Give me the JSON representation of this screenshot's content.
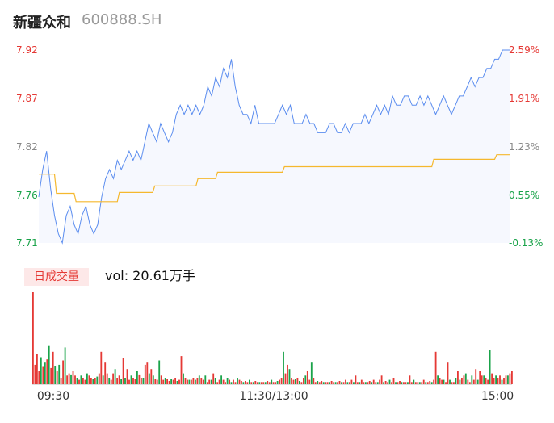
{
  "header": {
    "name": "新疆众和",
    "code": "600888.SH"
  },
  "volume_panel": {
    "tag": "日成交量",
    "label": "vol: 20.61万手"
  },
  "colors": {
    "up": "#e53935",
    "down": "#1aa34a",
    "neutral": "#888888",
    "price_line": "#5b8def",
    "avg_line": "#f5b82e",
    "area_fill": "#f6f8fe"
  },
  "chart_data": [
    {
      "type": "line",
      "title": "",
      "x_ticks": [
        "09:30",
        "11:30/13:00",
        "15:00"
      ],
      "y_left_ticks": [
        "7.92",
        "7.87",
        "7.82",
        "7.76",
        "7.71"
      ],
      "y_right_ticks": [
        "2.59%",
        "1.91%",
        "1.23%",
        "0.55%",
        "-0.13%"
      ],
      "ylim": [
        7.71,
        7.92
      ],
      "points_count": 241,
      "series": [
        {
          "role": "price",
          "keypoints": [
            [
              0,
              7.76
            ],
            [
              2,
              7.79
            ],
            [
              4,
              7.81
            ],
            [
              6,
              7.77
            ],
            [
              8,
              7.74
            ],
            [
              10,
              7.72
            ],
            [
              12,
              7.71
            ],
            [
              14,
              7.74
            ],
            [
              16,
              7.75
            ],
            [
              18,
              7.73
            ],
            [
              20,
              7.72
            ],
            [
              22,
              7.74
            ],
            [
              24,
              7.75
            ],
            [
              26,
              7.73
            ],
            [
              28,
              7.72
            ],
            [
              30,
              7.73
            ],
            [
              32,
              7.76
            ],
            [
              34,
              7.78
            ],
            [
              36,
              7.79
            ],
            [
              38,
              7.78
            ],
            [
              40,
              7.8
            ],
            [
              42,
              7.79
            ],
            [
              44,
              7.8
            ],
            [
              46,
              7.81
            ],
            [
              48,
              7.8
            ],
            [
              50,
              7.81
            ],
            [
              52,
              7.8
            ],
            [
              54,
              7.82
            ],
            [
              56,
              7.84
            ],
            [
              58,
              7.83
            ],
            [
              60,
              7.82
            ],
            [
              62,
              7.84
            ],
            [
              64,
              7.83
            ],
            [
              66,
              7.82
            ],
            [
              68,
              7.83
            ],
            [
              70,
              7.85
            ],
            [
              72,
              7.86
            ],
            [
              74,
              7.85
            ],
            [
              76,
              7.86
            ],
            [
              78,
              7.85
            ],
            [
              80,
              7.86
            ],
            [
              82,
              7.85
            ],
            [
              84,
              7.86
            ],
            [
              86,
              7.88
            ],
            [
              88,
              7.87
            ],
            [
              90,
              7.89
            ],
            [
              92,
              7.88
            ],
            [
              94,
              7.9
            ],
            [
              96,
              7.89
            ],
            [
              98,
              7.91
            ],
            [
              100,
              7.88
            ],
            [
              102,
              7.86
            ],
            [
              104,
              7.85
            ],
            [
              106,
              7.85
            ],
            [
              108,
              7.84
            ],
            [
              110,
              7.86
            ],
            [
              112,
              7.84
            ],
            [
              114,
              7.84
            ],
            [
              116,
              7.84
            ],
            [
              118,
              7.84
            ],
            [
              120,
              7.84
            ],
            [
              122,
              7.85
            ],
            [
              124,
              7.86
            ],
            [
              126,
              7.85
            ],
            [
              128,
              7.86
            ],
            [
              130,
              7.84
            ],
            [
              132,
              7.84
            ],
            [
              134,
              7.84
            ],
            [
              136,
              7.85
            ],
            [
              138,
              7.84
            ],
            [
              140,
              7.84
            ],
            [
              142,
              7.83
            ],
            [
              144,
              7.83
            ],
            [
              146,
              7.83
            ],
            [
              148,
              7.84
            ],
            [
              150,
              7.84
            ],
            [
              152,
              7.83
            ],
            [
              154,
              7.83
            ],
            [
              156,
              7.84
            ],
            [
              158,
              7.83
            ],
            [
              160,
              7.84
            ],
            [
              162,
              7.84
            ],
            [
              164,
              7.84
            ],
            [
              166,
              7.85
            ],
            [
              168,
              7.84
            ],
            [
              170,
              7.85
            ],
            [
              172,
              7.86
            ],
            [
              174,
              7.85
            ],
            [
              176,
              7.86
            ],
            [
              178,
              7.85
            ],
            [
              180,
              7.87
            ],
            [
              182,
              7.86
            ],
            [
              184,
              7.86
            ],
            [
              186,
              7.87
            ],
            [
              188,
              7.87
            ],
            [
              190,
              7.86
            ],
            [
              192,
              7.86
            ],
            [
              194,
              7.87
            ],
            [
              196,
              7.86
            ],
            [
              198,
              7.87
            ],
            [
              200,
              7.86
            ],
            [
              202,
              7.85
            ],
            [
              204,
              7.86
            ],
            [
              206,
              7.87
            ],
            [
              208,
              7.86
            ],
            [
              210,
              7.85
            ],
            [
              212,
              7.86
            ],
            [
              214,
              7.87
            ],
            [
              216,
              7.87
            ],
            [
              218,
              7.88
            ],
            [
              220,
              7.89
            ],
            [
              222,
              7.88
            ],
            [
              224,
              7.89
            ],
            [
              226,
              7.89
            ],
            [
              228,
              7.9
            ],
            [
              230,
              7.9
            ],
            [
              232,
              7.91
            ],
            [
              234,
              7.91
            ],
            [
              236,
              7.92
            ],
            [
              238,
              7.92
            ],
            [
              240,
              7.92
            ]
          ]
        },
        {
          "role": "average",
          "keypoints": [
            [
              0,
              7.785
            ],
            [
              8,
              7.785
            ],
            [
              9,
              7.764
            ],
            [
              18,
              7.764
            ],
            [
              19,
              7.755
            ],
            [
              40,
              7.755
            ],
            [
              41,
              7.765
            ],
            [
              58,
              7.765
            ],
            [
              59,
              7.772
            ],
            [
              80,
              7.772
            ],
            [
              81,
              7.78
            ],
            [
              90,
              7.78
            ],
            [
              91,
              7.787
            ],
            [
              124,
              7.787
            ],
            [
              125,
              7.793
            ],
            [
              200,
              7.793
            ],
            [
              201,
              7.801
            ],
            [
              232,
              7.801
            ],
            [
              233,
              7.806
            ],
            [
              240,
              7.806
            ]
          ]
        }
      ]
    },
    {
      "type": "bar",
      "title": "",
      "unit": "万手",
      "values": [
        85,
        18,
        28,
        12,
        25,
        16,
        20,
        23,
        36,
        15,
        30,
        17,
        12,
        18,
        6,
        22,
        34,
        8,
        10,
        9,
        12,
        8,
        6,
        4,
        8,
        6,
        4,
        10,
        8,
        6,
        5,
        6,
        7,
        10,
        30,
        8,
        20,
        10,
        6,
        4,
        10,
        14,
        6,
        8,
        5,
        24,
        6,
        14,
        4,
        8,
        6,
        5,
        12,
        9,
        6,
        6,
        18,
        20,
        10,
        14,
        8,
        5,
        4,
        22,
        8,
        4,
        6,
        5,
        3,
        5,
        4,
        6,
        3,
        4,
        26,
        10,
        6,
        4,
        4,
        4,
        6,
        4,
        6,
        8,
        6,
        4,
        8,
        2,
        4,
        4,
        10,
        6,
        2,
        4,
        8,
        4,
        2,
        6,
        4,
        2,
        4,
        2,
        6,
        4,
        3,
        2,
        3,
        2,
        4,
        2,
        2,
        3,
        2,
        2,
        2,
        2,
        2,
        3,
        2,
        4,
        2,
        2,
        3,
        4,
        6,
        30,
        10,
        18,
        14,
        6,
        4,
        5,
        6,
        3,
        2,
        6,
        8,
        12,
        4,
        20,
        6,
        2,
        3,
        2,
        3,
        2,
        2,
        2,
        2,
        3,
        2,
        2,
        2,
        3,
        2,
        2,
        4,
        2,
        2,
        4,
        2,
        8,
        2,
        2,
        4,
        2,
        2,
        2,
        3,
        2,
        4,
        2,
        2,
        4,
        8,
        2,
        3,
        2,
        4,
        2,
        6,
        2,
        2,
        3,
        2,
        2,
        2,
        2,
        8,
        2,
        4,
        2,
        2,
        2,
        2,
        4,
        2,
        2,
        3,
        2,
        4,
        30,
        8,
        6,
        4,
        4,
        2,
        20,
        4,
        2,
        2,
        6,
        12,
        4,
        6,
        8,
        10,
        4,
        2,
        8,
        4,
        14,
        4,
        12,
        8,
        8,
        6,
        4,
        32,
        10,
        6,
        8,
        6,
        8,
        4,
        6,
        8,
        8,
        10,
        12
      ],
      "colors": [
        "up",
        "up",
        "up",
        "up",
        "down",
        "up",
        "down",
        "up",
        "down",
        "up",
        "up",
        "down",
        "up",
        "down",
        "up",
        "up",
        "down",
        "up",
        "up",
        "down",
        "up",
        "up",
        "down",
        "up",
        "down",
        "up",
        "up",
        "down",
        "up",
        "up",
        "down",
        "up",
        "down",
        "up",
        "up",
        "down",
        "up",
        "up",
        "down",
        "up",
        "up",
        "down",
        "up",
        "up",
        "down",
        "up",
        "down",
        "up",
        "up",
        "down",
        "up",
        "up",
        "down",
        "up",
        "up",
        "down",
        "up",
        "up",
        "down",
        "up",
        "down",
        "up",
        "up",
        "down",
        "up",
        "up",
        "down",
        "up",
        "up",
        "down",
        "up",
        "up",
        "down",
        "up",
        "up",
        "down",
        "up",
        "up",
        "down",
        "up",
        "up",
        "down",
        "up",
        "down",
        "up",
        "up",
        "down",
        "up",
        "up",
        "down",
        "up",
        "down",
        "up",
        "up",
        "down",
        "up",
        "up",
        "down",
        "up",
        "down",
        "up",
        "up",
        "down",
        "up",
        "up",
        "down",
        "up",
        "up",
        "down",
        "up",
        "down",
        "up",
        "up",
        "down",
        "up",
        "up",
        "down",
        "up",
        "up",
        "down",
        "up",
        "up",
        "down",
        "up",
        "up",
        "down",
        "up",
        "up",
        "down",
        "up",
        "up",
        "down",
        "up",
        "down",
        "up",
        "up",
        "down",
        "up",
        "up",
        "down",
        "up",
        "up",
        "down",
        "up",
        "up",
        "down",
        "up",
        "up",
        "down",
        "up",
        "up",
        "down",
        "up",
        "up",
        "down",
        "up",
        "up",
        "down",
        "up",
        "up",
        "down",
        "up",
        "up",
        "down",
        "up",
        "up",
        "down",
        "up",
        "up",
        "down",
        "up",
        "up",
        "down",
        "up",
        "up",
        "down",
        "up",
        "up",
        "down",
        "up",
        "up",
        "down",
        "up",
        "up",
        "down",
        "up",
        "up",
        "down",
        "up",
        "up",
        "down",
        "up",
        "up",
        "down",
        "up",
        "up",
        "down",
        "up",
        "up",
        "down",
        "up",
        "up",
        "down",
        "up",
        "up",
        "down",
        "up",
        "up",
        "down",
        "up",
        "up",
        "down",
        "up",
        "down",
        "up",
        "up",
        "down",
        "up",
        "up",
        "down",
        "up",
        "up",
        "down",
        "up",
        "up",
        "down",
        "up",
        "up",
        "down",
        "up",
        "up",
        "down",
        "up",
        "up",
        "down",
        "up",
        "up",
        "down",
        "up",
        "up",
        "down",
        "up",
        "up",
        "down",
        "up",
        "up",
        "down",
        "up",
        "up",
        "up"
      ]
    }
  ]
}
